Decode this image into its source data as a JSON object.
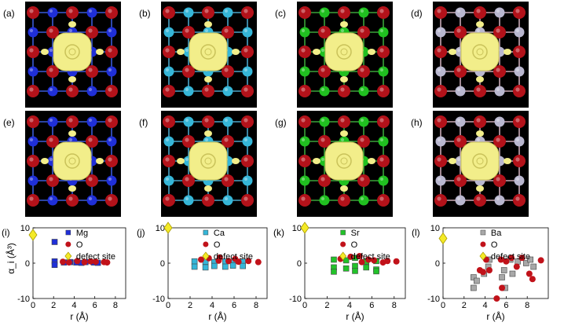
{
  "figure": {
    "panels": [
      {
        "label": "(a)",
        "host": "Mg",
        "host_color": "#1f2fd8",
        "bond": "#3b5bd6"
      },
      {
        "label": "(b)",
        "host": "Ca",
        "host_color": "#35b6d8",
        "bond": "#4aa6c8"
      },
      {
        "label": "(c)",
        "host": "Sr",
        "host_color": "#20c020",
        "bond": "#3aa33a"
      },
      {
        "label": "(d)",
        "host": "Ba",
        "host_color": "#b9b7cf",
        "bond": "#c9a9b6"
      },
      {
        "label": "(e)",
        "host": "Mg",
        "host_color": "#1f2fd8",
        "bond": "#3b5bd6"
      },
      {
        "label": "(f)",
        "host": "Ca",
        "host_color": "#35b6d8",
        "bond": "#4aa6c8"
      },
      {
        "label": "(g)",
        "host": "Sr",
        "host_color": "#20c020",
        "bond": "#3aa33a"
      },
      {
        "label": "(h)",
        "host": "Ba",
        "host_color": "#b9b7cf",
        "bond": "#c9a9b6"
      }
    ],
    "colors": {
      "oxygen": "#b3121a",
      "isosurface": "#f2ee8a",
      "defect": "#f4ea27"
    }
  },
  "chart_data": [
    {
      "type": "scatter",
      "label": "(i)",
      "xlabel": "r (Å)",
      "ylabel": "α_i (Å³)",
      "xlim": [
        0,
        9
      ],
      "ylim": [
        -10,
        10
      ],
      "xticks": [
        0,
        2,
        4,
        6,
        8
      ],
      "yticks": [
        -10,
        0,
        10
      ],
      "legend": [
        "Mg",
        "O",
        "defect site"
      ],
      "series": [
        {
          "name": "Mg",
          "marker": "square",
          "color": "#1f2fd8",
          "points": [
            [
              2.1,
              0.5
            ],
            [
              2.1,
              -0.5
            ],
            [
              2.1,
              6
            ],
            [
              3.0,
              0.2
            ],
            [
              3.6,
              0.3
            ],
            [
              4.2,
              0.2
            ],
            [
              4.7,
              0.1
            ],
            [
              5.1,
              0.3
            ],
            [
              5.9,
              0.2
            ],
            [
              6.3,
              0.1
            ]
          ]
        },
        {
          "name": "O",
          "marker": "circle",
          "color": "#c1121a",
          "points": [
            [
              2.9,
              0.4
            ],
            [
              3.5,
              0.2
            ],
            [
              4.3,
              0.6
            ],
            [
              5.0,
              0.3
            ],
            [
              5.6,
              0.5
            ],
            [
              6.1,
              0.4
            ],
            [
              6.9,
              0.3
            ],
            [
              7.2,
              0.2
            ]
          ]
        },
        {
          "name": "defect site",
          "marker": "diamond",
          "color": "#f4ea27",
          "points": [
            [
              0,
              8
            ]
          ]
        }
      ]
    },
    {
      "type": "scatter",
      "label": "(j)",
      "xlabel": "r (Å)",
      "ylabel": "",
      "xlim": [
        0,
        9
      ],
      "ylim": [
        -10,
        10
      ],
      "xticks": [
        0,
        2,
        4,
        6,
        8
      ],
      "yticks": [
        -10,
        0,
        10
      ],
      "legend": [
        "Ca",
        "O",
        "defect site"
      ],
      "series": [
        {
          "name": "Ca",
          "marker": "square",
          "color": "#35b6d8",
          "points": [
            [
              2.4,
              0.5
            ],
            [
              2.4,
              -1
            ],
            [
              3.4,
              0.4
            ],
            [
              3.4,
              -1.2
            ],
            [
              4.2,
              0.3
            ],
            [
              4.2,
              -0.8
            ],
            [
              5.2,
              0.5
            ],
            [
              5.2,
              -1.0
            ],
            [
              5.9,
              0.3
            ],
            [
              5.9,
              -0.7
            ],
            [
              6.8,
              0.4
            ],
            [
              6.8,
              -0.8
            ]
          ]
        },
        {
          "name": "O",
          "marker": "circle",
          "color": "#c1121a",
          "points": [
            [
              3.0,
              1.0
            ],
            [
              3.7,
              1.4
            ],
            [
              4.6,
              0.7
            ],
            [
              4.7,
              1.6
            ],
            [
              5.5,
              0.6
            ],
            [
              6.1,
              1.2
            ],
            [
              6.4,
              0.4
            ],
            [
              7.3,
              0.6
            ],
            [
              8.2,
              0.3
            ]
          ]
        },
        {
          "name": "defect site",
          "marker": "diamond",
          "color": "#f4ea27",
          "points": [
            [
              0,
              10
            ]
          ]
        }
      ]
    },
    {
      "type": "scatter",
      "label": "(k)",
      "xlabel": "r (Å)",
      "ylabel": "",
      "xlim": [
        0,
        9
      ],
      "ylim": [
        -10,
        10
      ],
      "xticks": [
        0,
        2,
        4,
        6,
        8
      ],
      "yticks": [
        -10,
        0,
        10
      ],
      "legend": [
        "Sr",
        "O",
        "defect site"
      ],
      "series": [
        {
          "name": "Sr",
          "marker": "square",
          "color": "#22c22a",
          "points": [
            [
              2.6,
              1
            ],
            [
              2.6,
              -1.2
            ],
            [
              2.6,
              -2.4
            ],
            [
              3.7,
              0.8
            ],
            [
              3.7,
              -1.5
            ],
            [
              4.5,
              1.5
            ],
            [
              4.5,
              -0.8
            ],
            [
              4.5,
              -2.2
            ],
            [
              5.5,
              0.5
            ],
            [
              5.5,
              -1.2
            ],
            [
              6.4,
              0.6
            ],
            [
              6.4,
              -1.8
            ],
            [
              6.4,
              -2.3
            ]
          ]
        },
        {
          "name": "O",
          "marker": "circle",
          "color": "#c1121a",
          "points": [
            [
              3.2,
              1.2
            ],
            [
              4.1,
              1.8
            ],
            [
              4.9,
              2.0
            ],
            [
              5.1,
              0.3
            ],
            [
              5.7,
              1.0
            ],
            [
              6.2,
              0.8
            ],
            [
              7.0,
              0.2
            ],
            [
              7.4,
              0.6
            ],
            [
              8.2,
              0.5
            ]
          ]
        },
        {
          "name": "defect site",
          "marker": "diamond",
          "color": "#f4ea27",
          "points": [
            [
              0,
              10
            ]
          ]
        }
      ]
    },
    {
      "type": "scatter",
      "label": "(l)",
      "xlabel": "r (Å)",
      "ylabel": "",
      "xlim": [
        0,
        10
      ],
      "ylim": [
        -10,
        10
      ],
      "xticks": [
        0,
        2,
        4,
        6,
        8
      ],
      "yticks": [
        -10,
        0,
        10
      ],
      "legend": [
        "Ba",
        "O",
        "defect site"
      ],
      "series": [
        {
          "name": "Ba",
          "marker": "square",
          "color": "#a8a8a8",
          "points": [
            [
              2.9,
              -4
            ],
            [
              2.9,
              -7
            ],
            [
              3.2,
              -5
            ],
            [
              3.9,
              -3
            ],
            [
              4.3,
              -1
            ],
            [
              4.4,
              1
            ],
            [
              5.6,
              -4
            ],
            [
              5.8,
              -2
            ],
            [
              5.9,
              -7
            ],
            [
              6.4,
              1
            ],
            [
              6.6,
              -3
            ],
            [
              7.1,
              0.5
            ],
            [
              7.9,
              0
            ],
            [
              8.3,
              1
            ],
            [
              8.6,
              -1
            ]
          ]
        },
        {
          "name": "O",
          "marker": "circle",
          "color": "#c1121a",
          "points": [
            [
              3.5,
              -2
            ],
            [
              3.8,
              -2.5
            ],
            [
              4.1,
              1.0
            ],
            [
              4.4,
              -2.0
            ],
            [
              5.1,
              -10
            ],
            [
              5.6,
              -7
            ],
            [
              5.5,
              1.0
            ],
            [
              6.0,
              0.5
            ],
            [
              6.5,
              1.5
            ],
            [
              7.0,
              -1.0
            ],
            [
              7.5,
              1.5
            ],
            [
              8.2,
              -3.0
            ],
            [
              8.5,
              -4.5
            ],
            [
              9.3,
              0.8
            ]
          ]
        },
        {
          "name": "defect site",
          "marker": "diamond",
          "color": "#f4ea27",
          "points": [
            [
              0,
              7
            ]
          ]
        }
      ]
    }
  ]
}
